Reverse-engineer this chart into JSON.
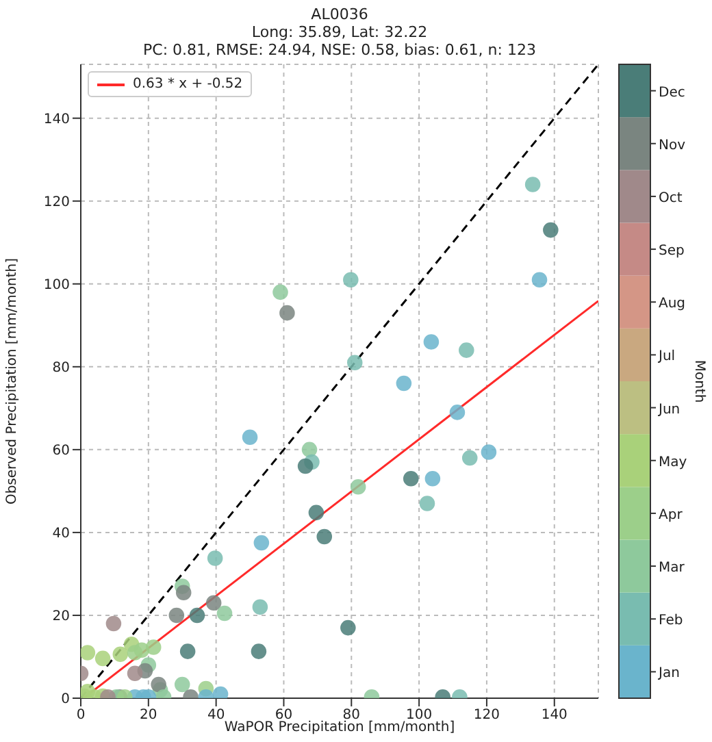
{
  "chart_data": {
    "type": "scatter",
    "title": "AL0036",
    "subtitle": "Long: 35.89, Lat: 32.22",
    "annotations": [
      "PC: 0.81, RMSE: 24.94, NSE: 0.58, bias: 0.61, n: 123"
    ],
    "xlabel": "WaPOR Precipitation [mm/month]",
    "ylabel": "Observed Precipitation [mm/month]",
    "clabel": "Month",
    "xlim": [
      0,
      153
    ],
    "ylim": [
      0,
      153
    ],
    "xticks": [
      0,
      20,
      40,
      60,
      80,
      100,
      120,
      140
    ],
    "yticks": [
      0,
      20,
      40,
      60,
      80,
      100,
      120,
      140
    ],
    "grid": true,
    "legend": "top left",
    "clim": [
      0.5,
      12.5
    ],
    "cticks": [
      {
        "value": 1,
        "label": "Jan"
      },
      {
        "value": 2,
        "label": "Feb"
      },
      {
        "value": 3,
        "label": "Mar"
      },
      {
        "value": 4,
        "label": "Apr"
      },
      {
        "value": 5,
        "label": "May"
      },
      {
        "value": 6,
        "label": "Jun"
      },
      {
        "value": 7,
        "label": "Jul"
      },
      {
        "value": 8,
        "label": "Aug"
      },
      {
        "value": 9,
        "label": "Sep"
      },
      {
        "value": 10,
        "label": "Oct"
      },
      {
        "value": 11,
        "label": "Nov"
      },
      {
        "value": 12,
        "label": "Dec"
      }
    ],
    "series": [
      {
        "marker": "circle",
        "x": [
          133.6,
          138.9,
          135.6,
          59,
          79.8,
          61,
          81,
          103.6,
          114,
          95.5,
          50,
          67.6,
          68.3,
          66.4,
          82,
          97.6,
          104,
          102.4,
          115,
          120.6,
          111.3,
          69.6,
          72,
          53.4,
          39.7,
          30,
          30.4,
          39.3,
          28.3,
          34.4,
          42.5,
          53,
          9.7,
          21.5,
          31.6,
          52.6,
          79,
          11.7,
          15,
          16,
          2,
          6.5,
          18,
          20,
          19,
          16,
          30,
          37,
          23.5,
          23,
          41.3,
          0,
          1,
          2,
          6.5,
          11.5,
          16,
          18.5,
          24.5,
          32.5,
          37,
          86,
          107,
          112,
          10.5,
          13,
          20,
          4,
          8
        ],
        "values": [
          124,
          113,
          101,
          98,
          101,
          93,
          81,
          86,
          84,
          76,
          63,
          60,
          57,
          56,
          51,
          53,
          53,
          47,
          58,
          59.4,
          69,
          44.8,
          39,
          37.5,
          33.8,
          27,
          25.5,
          23,
          20,
          20,
          20.5,
          22,
          18,
          12.3,
          11.3,
          11.3,
          17,
          10.6,
          13,
          11,
          11,
          9.6,
          11.6,
          8,
          6.6,
          6,
          3.3,
          2.3,
          2,
          3.3,
          1,
          6,
          0.5,
          1.6,
          0.5,
          0.3,
          0.3,
          0.3,
          0.3,
          0.3,
          0.3,
          0.3,
          0.3,
          0.3,
          0.3,
          0.3,
          0.3,
          0.3,
          0.3
        ],
        "colors": [
          "#79bcb0",
          "#4a7d78",
          "#6ab4cc",
          "#8ec99c",
          "#79bcb0",
          "#7a8580",
          "#79bcb0",
          "#6ab4cc",
          "#79bcb0",
          "#6ab4cc",
          "#6ab4cc",
          "#8ec99c",
          "#79bcb0",
          "#4a7d78",
          "#8ec99c",
          "#4a7d78",
          "#6ab4cc",
          "#79bcb0",
          "#79bcb0",
          "#6ab4cc",
          "#6ab4cc",
          "#4a7d78",
          "#4a7d78",
          "#6ab4cc",
          "#79bcb0",
          "#8ec99c",
          "#7a8580",
          "#7a8580",
          "#7a8580",
          "#4a7d78",
          "#8ec99c",
          "#79bcb0",
          "#a0898a",
          "#9ccf8a",
          "#4a7d78",
          "#4a7d78",
          "#4a7d78",
          "#a9d17a",
          "#a9d17a",
          "#9ccf8a",
          "#a9d17a",
          "#a9d17a",
          "#9ccf8a",
          "#8ec99c",
          "#7a8580",
          "#a0898a",
          "#8ec99c",
          "#9ccf8a",
          "#8ec99c",
          "#7a8580",
          "#6ab4cc",
          "#a0898a",
          "#a9d17a",
          "#a9d17a",
          "#a9d17a",
          "#7a8580",
          "#6ab4cc",
          "#6ab4cc",
          "#8ec99c",
          "#7a8580",
          "#6ab4cc",
          "#8ec99c",
          "#4a7d78",
          "#79bcb0",
          "#8ec99c",
          "#9ccf8a",
          "#6ab4cc",
          "#a9d17a",
          "#a0898a"
        ]
      },
      {
        "type": "line",
        "marker": "none",
        "name": "0.63 * x + -0.52",
        "color": "#ff2a2a",
        "x": [
          1,
          153
        ],
        "values": [
          0.1,
          95.9
        ]
      },
      {
        "type": "line",
        "marker": "none",
        "color": "#000000",
        "line_style": "dashed",
        "x": [
          0,
          153
        ],
        "values": [
          0,
          153
        ]
      }
    ]
  }
}
